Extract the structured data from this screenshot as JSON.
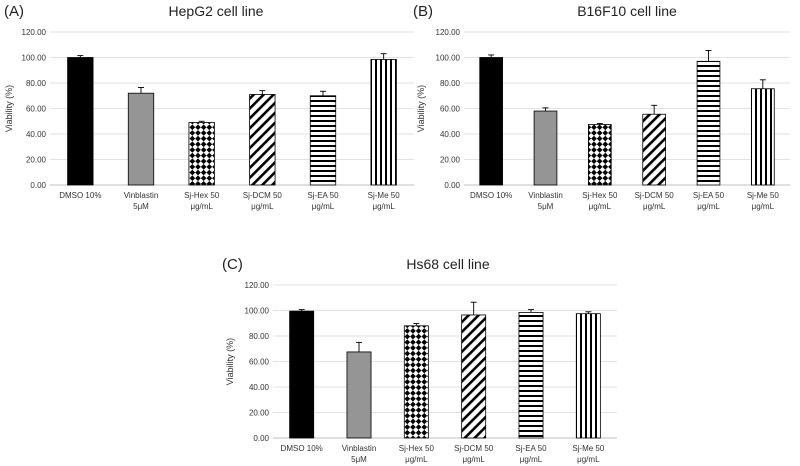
{
  "chart_data": [
    {
      "type": "bar",
      "panel_label": "(A)",
      "title": "HepG2 cell line",
      "ylabel": "Viability (%)",
      "ylim": [
        0,
        120
      ],
      "yticks": [
        "0.00",
        "20.00",
        "40.00",
        "60.00",
        "80.00",
        "100.00",
        "120.00"
      ],
      "categories": [
        [
          "DMSO 10%"
        ],
        [
          "Vinblastin",
          "5μM"
        ],
        [
          "Sj-Hex 50",
          "μg/mL"
        ],
        [
          "Sj-DCM 50",
          "μg/mL"
        ],
        [
          "Sj-EA  50",
          "μg/mL"
        ],
        [
          "Sj-Me 50",
          "μg/mL"
        ]
      ],
      "values": [
        100,
        72,
        49,
        71,
        70,
        98.5
      ],
      "errors": [
        1.5,
        4.5,
        1,
        3,
        3.5,
        4.5
      ],
      "fills": [
        "solid-black",
        "solid-gray",
        "diamond-checker",
        "diagonal-stripes",
        "horizontal-stripes",
        "vertical-stripes"
      ]
    },
    {
      "type": "bar",
      "panel_label": "(B)",
      "title": "B16F10 cell line",
      "ylabel": "Viability (%)",
      "ylim": [
        0,
        120
      ],
      "yticks": [
        "0.00",
        "20.00",
        "40.00",
        "60.00",
        "80.00",
        "100.00",
        "120.00"
      ],
      "categories": [
        [
          "DMSO 10%"
        ],
        [
          "Vinblastin",
          "5μM"
        ],
        [
          "Sj-Hex 50",
          "μg/mL"
        ],
        [
          "Sj-DCM 50",
          "μg/mL"
        ],
        [
          "Sj-EA  50",
          "μg/mL"
        ],
        [
          "Sj-Me 50",
          "μg/mL"
        ]
      ],
      "values": [
        100,
        58,
        47.5,
        55.5,
        97,
        75.5
      ],
      "errors": [
        2,
        2.5,
        0.8,
        7,
        8.5,
        7
      ],
      "fills": [
        "solid-black",
        "solid-gray",
        "diamond-checker",
        "diagonal-stripes",
        "horizontal-stripes",
        "vertical-stripes"
      ]
    },
    {
      "type": "bar",
      "panel_label": "(C)",
      "title": "Hs68 cell line",
      "ylabel": "Viability (%)",
      "ylim": [
        0,
        120
      ],
      "yticks": [
        "0.00",
        "20.00",
        "40.00",
        "60.00",
        "80.00",
        "100.00",
        "120.00"
      ],
      "categories": [
        [
          "DMSO 10%"
        ],
        [
          "Vinblastin",
          "5μM"
        ],
        [
          "Sj-Hex 50",
          "μg/mL"
        ],
        [
          "Sj-DCM 50",
          "μg/mL"
        ],
        [
          "Sj-EA  50",
          "μg/mL"
        ],
        [
          "Sj-Me 50",
          "μg/mL"
        ]
      ],
      "values": [
        99.5,
        67.5,
        88,
        96.5,
        98.5,
        97.5
      ],
      "errors": [
        1.2,
        7.5,
        1.8,
        10,
        2.2,
        1.5
      ],
      "fills": [
        "solid-black",
        "solid-gray",
        "diamond-checker",
        "diagonal-stripes",
        "horizontal-stripes",
        "vertical-stripes"
      ]
    }
  ]
}
